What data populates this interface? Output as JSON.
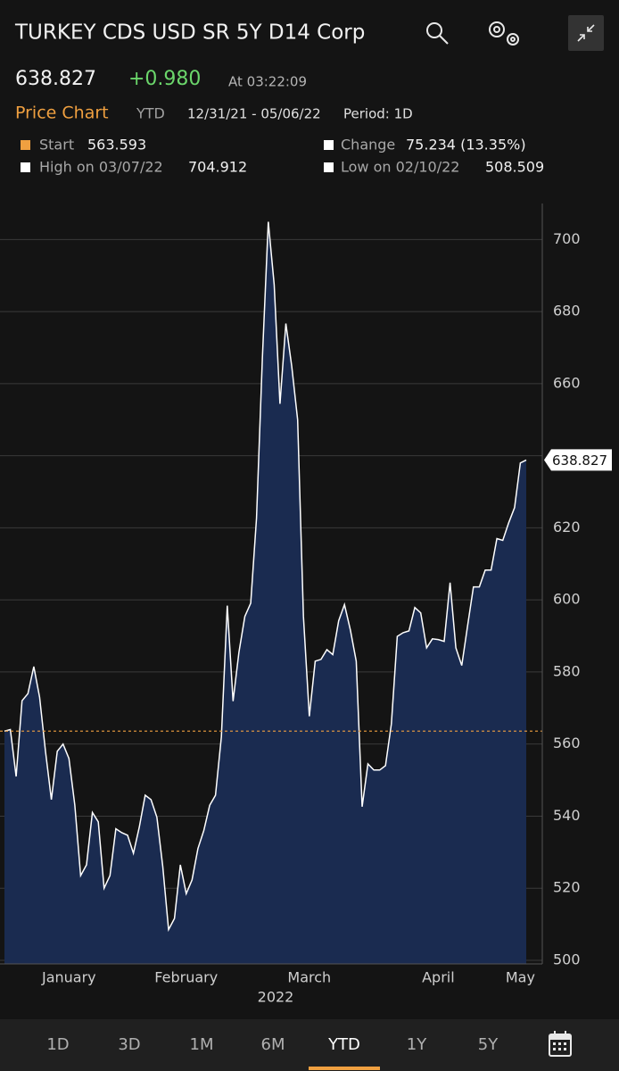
{
  "header": {
    "title": "TURKEY CDS USD SR 5Y D14 Corp",
    "price": "638.827",
    "change": "+0.980",
    "time": "At 03:22:09",
    "chart_label": "Price Chart",
    "range_label": "YTD",
    "dates": "12/31/21 - 05/06/22",
    "period": "Period: 1D"
  },
  "stats": {
    "start": {
      "label": "Start",
      "value": 563.593
    },
    "change": {
      "label": "Change",
      "value": "75.234 (13.35%)"
    },
    "high": {
      "label": "High on 03/07/22",
      "value": "704.912"
    },
    "low": {
      "label": "Low on 02/10/22",
      "value": "508.509"
    }
  },
  "chart_data": {
    "type": "area",
    "color": "#ffffff",
    "fill": "#1a2b50",
    "categories": [
      null,
      null,
      null,
      null,
      null,
      null,
      null,
      null,
      null,
      null,
      null,
      "January",
      null,
      null,
      null,
      null,
      null,
      null,
      null,
      null,
      null,
      null,
      null,
      null,
      null,
      null,
      null,
      null,
      null,
      null,
      null,
      "February",
      null,
      null,
      null,
      null,
      null,
      null,
      null,
      null,
      null,
      null,
      null,
      null,
      null,
      null,
      null,
      null,
      null,
      null,
      null,
      null,
      "March",
      null,
      null,
      null,
      null,
      null,
      null,
      null,
      null,
      null,
      null,
      null,
      null,
      null,
      null,
      null,
      null,
      null,
      null,
      null,
      null,
      null,
      "April",
      null,
      null,
      null,
      null,
      null,
      null,
      null,
      null,
      null,
      null,
      null,
      null,
      null,
      "May",
      null
    ],
    "values": [
      563.593,
      564,
      551,
      572,
      574,
      581.5,
      573,
      558,
      544.6,
      558,
      560,
      556,
      543,
      523.5,
      526.5,
      541,
      538.4,
      520,
      523.5,
      536.5,
      535.4,
      534.7,
      529.7,
      537,
      545.8,
      544.6,
      539.7,
      526,
      508.509,
      511.6,
      526.5,
      518.5,
      522.3,
      531,
      536,
      543,
      545.8,
      562,
      598.4,
      571.9,
      585.5,
      595.4,
      599.1,
      622.7,
      667.3,
      704.912,
      687.5,
      654.4,
      676.7,
      664.8,
      650,
      595.4,
      567.7,
      583,
      583.5,
      586.2,
      584.8,
      594.2,
      598.7,
      591.7,
      583,
      542.6,
      554.5,
      552.8,
      552.8,
      554,
      565.6,
      589.9,
      590.9,
      591.4,
      597.9,
      596.4,
      586.7,
      589.2,
      589,
      588.5,
      604.8,
      586.7,
      581.8,
      592.9,
      603.6,
      603.6,
      608.3,
      608.3,
      617,
      616.5,
      621.4,
      625.6,
      638,
      638.827
    ],
    "year_label": "2022",
    "ylim": [
      499,
      710
    ],
    "yticks": [
      500,
      520,
      540,
      560,
      580,
      600,
      620,
      640,
      660,
      680,
      700
    ],
    "grid": true
  },
  "tabs": [
    "1D",
    "3D",
    "1M",
    "6M",
    "YTD",
    "1Y",
    "5Y"
  ]
}
